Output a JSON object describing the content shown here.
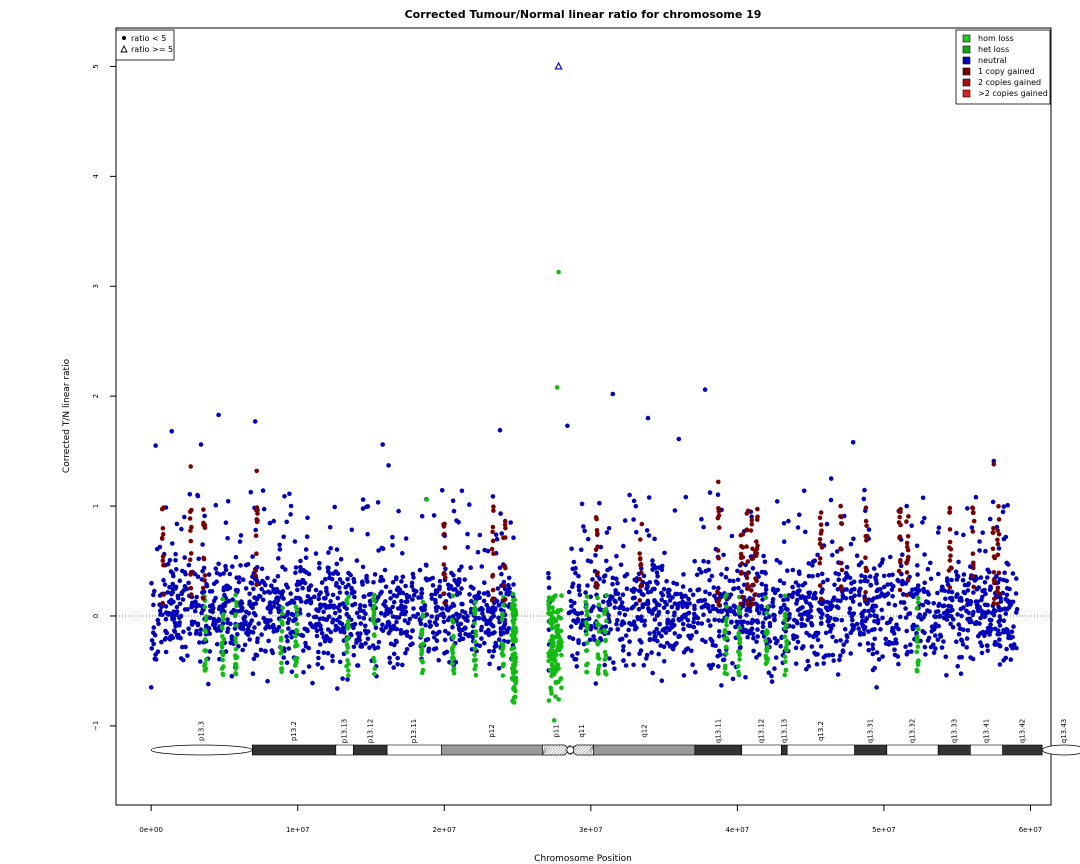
{
  "chart_data": {
    "type": "scatter",
    "title": "Corrected Tumour/Normal linear ratio for chromosome  19",
    "xlabel": "Chromosome Position",
    "ylabel": "Corrected T/N linear ratio",
    "xlim": [
      -2400000,
      61400000
    ],
    "ylim": [
      -1.72,
      5.35
    ],
    "x_ticks": [
      0,
      10000000,
      20000000,
      30000000,
      40000000,
      50000000,
      60000000
    ],
    "x_tick_labels": [
      "0e+00",
      "1e+07",
      "2e+07",
      "3e+07",
      "4e+07",
      "5e+07",
      "6e+07"
    ],
    "y_ticks": [
      -1,
      0,
      1,
      2,
      3,
      4,
      5
    ],
    "y_tick_labels": [
      "−1",
      "0",
      "1",
      "2",
      "3",
      "4",
      "5"
    ],
    "reference_line_y": 0,
    "shape_legend": {
      "position": "top-left",
      "entries": [
        {
          "label": "ratio < 5",
          "symbol": "filled-circle"
        },
        {
          "label": "ratio >= 5",
          "symbol": "open-triangle"
        }
      ]
    },
    "color_legend": {
      "position": "top-right",
      "entries": [
        {
          "label": "hom loss",
          "color": "#22cc22"
        },
        {
          "label": "het loss",
          "color": "#11aa11"
        },
        {
          "label": "neutral",
          "color": "#0000bb"
        },
        {
          "label": "1 copy gained",
          "color": "#7a0000"
        },
        {
          "label": "2 copies gained",
          "color": "#aa1111"
        },
        {
          "label": ">2 copies gained",
          "color": "#dd2222"
        }
      ]
    },
    "series": [
      {
        "name": "neutral",
        "color": "#0000bb",
        "x_range": [
          0,
          59100000
        ],
        "y_band": [
          -0.45,
          0.55
        ],
        "outliers": [
          {
            "x": 300000,
            "y": 1.55
          },
          {
            "x": 1400000,
            "y": 1.68
          },
          {
            "x": 3400000,
            "y": 1.56
          },
          {
            "x": 4600000,
            "y": 1.83
          },
          {
            "x": 7100000,
            "y": 1.77
          },
          {
            "x": 15800000,
            "y": 1.56
          },
          {
            "x": 23800000,
            "y": 1.69
          },
          {
            "x": 31500000,
            "y": 2.02
          },
          {
            "x": 33900000,
            "y": 1.8
          },
          {
            "x": 37800000,
            "y": 2.06
          },
          {
            "x": 47900000,
            "y": 1.58
          },
          {
            "x": 28400000,
            "y": 1.73
          },
          {
            "x": 36000000,
            "y": 1.61
          },
          {
            "x": 57500000,
            "y": 1.41
          },
          {
            "x": 16200000,
            "y": 1.37
          },
          {
            "x": 46400000,
            "y": 1.25
          },
          {
            "x": 12700000,
            "y": -0.66
          },
          {
            "x": 49500000,
            "y": -0.65
          },
          {
            "x": 0,
            "y": -0.65
          },
          {
            "x": 3900000,
            "y": -0.62
          }
        ]
      },
      {
        "name": "hom loss / het loss",
        "color": "#11bb11",
        "columns_x": [
          3700000,
          4900000,
          5800000,
          8900000,
          9900000,
          13400000,
          15200000,
          18500000,
          20600000,
          22100000,
          24000000,
          27400000,
          29700000,
          30500000,
          31000000,
          39200000,
          40100000,
          42000000,
          43300000,
          52300000
        ],
        "cluster_x_ranges": [
          [
            24600000,
            24900000
          ],
          [
            27100000,
            28000000
          ]
        ],
        "outliers": [
          {
            "x": 27800000,
            "y": 3.13
          },
          {
            "x": 27700000,
            "y": 2.08
          },
          {
            "x": 27500000,
            "y": -0.95
          },
          {
            "x": 18800000,
            "y": 1.06
          }
        ]
      },
      {
        "name": "1 copy gained",
        "color": "#7a0000",
        "columns_x": [
          800000,
          2700000,
          3600000,
          7200000,
          20000000,
          23300000,
          24100000,
          30400000,
          33400000,
          38700000,
          40300000,
          40700000,
          41000000,
          41300000,
          45700000,
          47100000,
          48800000,
          51100000,
          51600000,
          54500000,
          56100000,
          57500000,
          57800000
        ],
        "outliers": [
          {
            "x": 2700000,
            "y": 1.36
          },
          {
            "x": 7200000,
            "y": 1.32
          },
          {
            "x": 38700000,
            "y": 1.22
          },
          {
            "x": 57500000,
            "y": 1.38
          }
        ]
      },
      {
        "name": "ratio >= 5",
        "color": "#0000bb",
        "symbol": "open-triangle",
        "points": [
          {
            "x": 27800000,
            "y": 5.0
          }
        ]
      }
    ],
    "ideogram": {
      "bands": [
        {
          "label": "p13.3",
          "start": 0,
          "end": 6900000,
          "stain": "gneg"
        },
        {
          "label": "p13.2",
          "start": 6900000,
          "end": 12600000,
          "stain": "gpos75"
        },
        {
          "label": "p13.13",
          "start": 12600000,
          "end": 13800000,
          "stain": "gneg"
        },
        {
          "label": "p13.12",
          "start": 13800000,
          "end": 16100000,
          "stain": "gpos75"
        },
        {
          "label": "p13.11",
          "start": 16100000,
          "end": 19800000,
          "stain": "gneg"
        },
        {
          "label": "p12",
          "start": 19800000,
          "end": 26700000,
          "stain": "gpos50"
        },
        {
          "label": "p11",
          "start": 26700000,
          "end": 28600000,
          "stain": "acen"
        },
        {
          "label": "q11",
          "start": 28600000,
          "end": 30200000,
          "stain": "acen"
        },
        {
          "label": "q12",
          "start": 30200000,
          "end": 37100000,
          "stain": "gpos50"
        },
        {
          "label": "q13.11",
          "start": 37100000,
          "end": 40300000,
          "stain": "gpos75"
        },
        {
          "label": "q13.12",
          "start": 40300000,
          "end": 43000000,
          "stain": "gneg"
        },
        {
          "label": "q13.13",
          "start": 43000000,
          "end": 43400000,
          "stain": "gpos75"
        },
        {
          "label": "q13.2",
          "start": 43400000,
          "end": 48000000,
          "stain": "gneg"
        },
        {
          "label": "q13.31",
          "start": 48000000,
          "end": 50200000,
          "stain": "gpos75"
        },
        {
          "label": "q13.32",
          "start": 50200000,
          "end": 53700000,
          "stain": "gneg"
        },
        {
          "label": "q13.33",
          "start": 53700000,
          "end": 55900000,
          "stain": "gpos75"
        },
        {
          "label": "q13.41",
          "start": 55900000,
          "end": 58100000,
          "stain": "gneg"
        },
        {
          "label": "q13.42",
          "start": 58100000,
          "end": 60800000,
          "stain": "gpos75"
        },
        {
          "label": "q13.43",
          "start": 60800000,
          "end": 63800000,
          "stain": "gneg"
        }
      ]
    }
  }
}
